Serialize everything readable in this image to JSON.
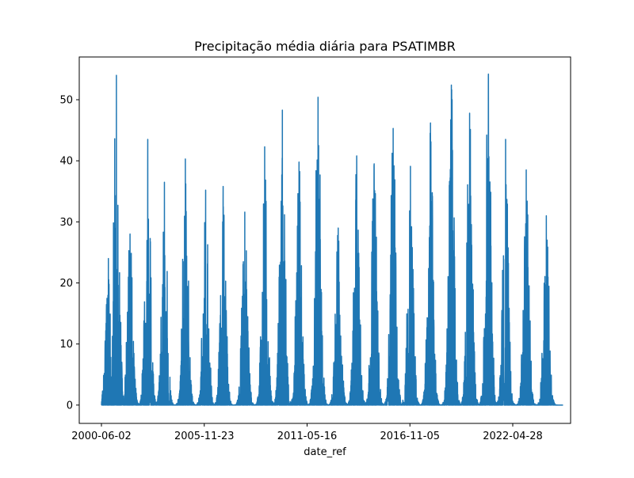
{
  "chart_data": {
    "type": "line",
    "title": "Precipitação média diária para PSATIMBR",
    "xlabel": "date_ref",
    "ylabel": "",
    "x_tick_labels": [
      "2000-06-02",
      "2005-11-23",
      "2011-05-16",
      "2016-11-05",
      "2022-04-28"
    ],
    "x_range": [
      "2000-06-02",
      "2024-12-31"
    ],
    "y_ticks": [
      0,
      10,
      20,
      30,
      40,
      50
    ],
    "ylim": [
      -3,
      57
    ],
    "grid": false,
    "legend": "none",
    "series": [
      {
        "color": "#1f77b4",
        "description_note": "",
        "annual_peaks": [
          {
            "date": "2000-10-15",
            "value": 24
          },
          {
            "date": "2001-03-20",
            "value": 54
          },
          {
            "date": "2001-12-10",
            "value": 28
          },
          {
            "date": "2002-11-20",
            "value": 43.5
          },
          {
            "date": "2003-10-10",
            "value": 36.5
          },
          {
            "date": "2004-11-20",
            "value": 40.3
          },
          {
            "date": "2005-12-20",
            "value": 35.2
          },
          {
            "date": "2006-11-25",
            "value": 35.8
          },
          {
            "date": "2008-01-20",
            "value": 31.6
          },
          {
            "date": "2009-02-10",
            "value": 42.3
          },
          {
            "date": "2010-01-20",
            "value": 48.3
          },
          {
            "date": "2010-12-10",
            "value": 39.8
          },
          {
            "date": "2011-12-15",
            "value": 50.4
          },
          {
            "date": "2013-01-10",
            "value": 29.0
          },
          {
            "date": "2014-01-05",
            "value": 40.8
          },
          {
            "date": "2014-12-10",
            "value": 39.5
          },
          {
            "date": "2015-12-15",
            "value": 45.3
          },
          {
            "date": "2016-11-15",
            "value": 39.1
          },
          {
            "date": "2017-12-10",
            "value": 46.2
          },
          {
            "date": "2019-01-20",
            "value": 52.4
          },
          {
            "date": "2020-01-10",
            "value": 47.8
          },
          {
            "date": "2021-01-10",
            "value": 54.2
          },
          {
            "date": "2021-12-10",
            "value": 43.5
          },
          {
            "date": "2023-01-15",
            "value": 38.5
          },
          {
            "date": "2024-02-10",
            "value": 31.0
          }
        ]
      }
    ]
  }
}
